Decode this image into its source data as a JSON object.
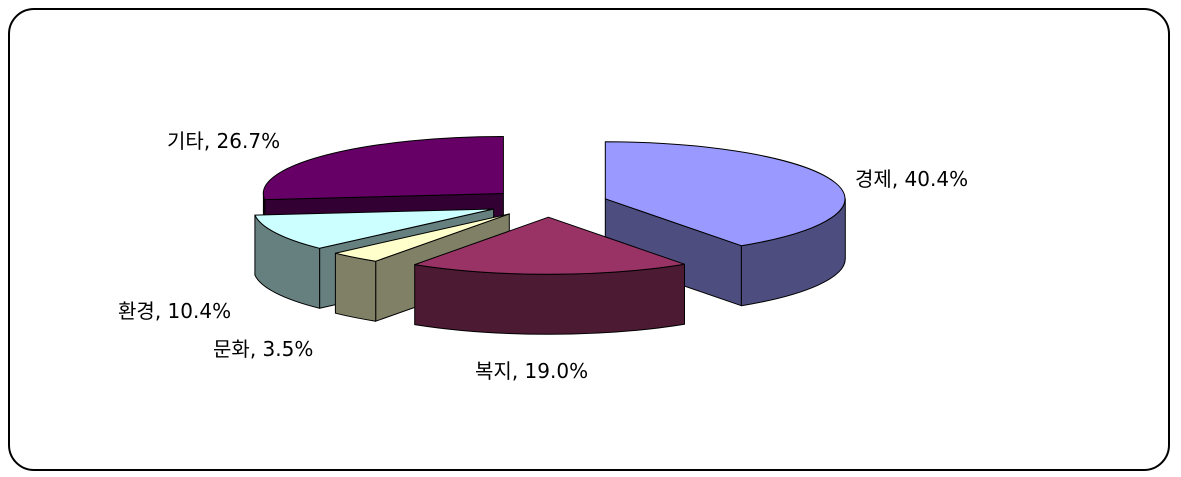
{
  "chart_data": {
    "type": "pie",
    "style": "3d-exploded",
    "categories": [
      "경제",
      "복지",
      "문화",
      "환경",
      "기타"
    ],
    "values": [
      40.4,
      19.0,
      3.5,
      10.4,
      26.7
    ],
    "value_suffix": "%",
    "colors": [
      "#9999FF",
      "#993366",
      "#FFFFCC",
      "#CCFFFF",
      "#660066"
    ],
    "side_colors": [
      "#4D4D80",
      "#4D1A33",
      "#808066",
      "#668080",
      "#330033"
    ],
    "legend": "none"
  }
}
